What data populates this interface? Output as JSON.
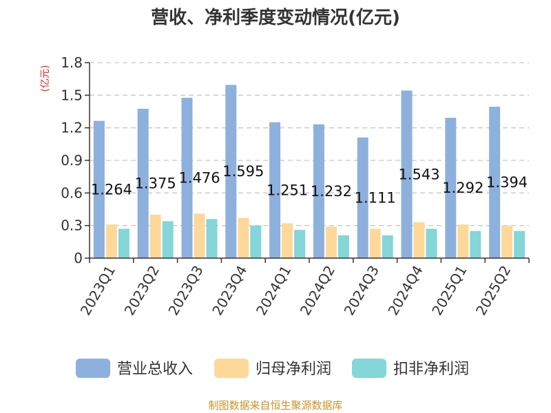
{
  "chart_data": {
    "type": "bar",
    "title": "营收、净利季度变动情况(亿元)",
    "ylabel": "(亿元)",
    "ylim": [
      0,
      1.8
    ],
    "yticks": [
      "0",
      "0.3",
      "0.6",
      "0.9",
      "1.2",
      "1.5",
      "1.8"
    ],
    "grid": true,
    "legend_position": "bottom",
    "categories": [
      "2023Q1",
      "2023Q2",
      "2023Q3",
      "2023Q4",
      "2024Q1",
      "2024Q2",
      "2024Q3",
      "2024Q4",
      "2025Q1",
      "2025Q2"
    ],
    "series": [
      {
        "name": "营业总收入",
        "color": "#8eb0dd",
        "values": [
          1.264,
          1.375,
          1.476,
          1.595,
          1.251,
          1.232,
          1.111,
          1.543,
          1.292,
          1.394
        ],
        "labels": [
          "1.264",
          "1.375",
          "1.476",
          "1.595",
          "1.251",
          "1.232",
          "1.111",
          "1.543",
          "1.292",
          "1.394"
        ]
      },
      {
        "name": "归母净利润",
        "color": "#fdd899",
        "values": [
          0.31,
          0.4,
          0.41,
          0.37,
          0.32,
          0.29,
          0.27,
          0.33,
          0.31,
          0.3
        ]
      },
      {
        "name": "扣非净利润",
        "color": "#84d6d8",
        "values": [
          0.27,
          0.34,
          0.36,
          0.3,
          0.26,
          0.21,
          0.21,
          0.27,
          0.25,
          0.25
        ]
      }
    ]
  },
  "source": "制图数据来自恒生聚源数据库",
  "colors": {
    "ylabel": "#e8281e",
    "source": "#c8932a",
    "grid": "#c8c8c8",
    "axis": "#333333"
  }
}
